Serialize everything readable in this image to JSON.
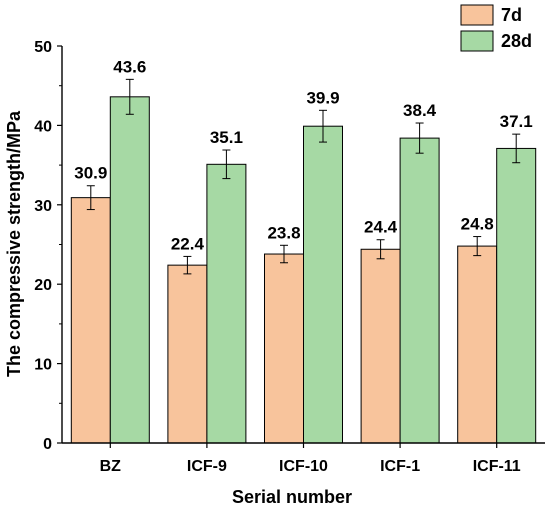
{
  "chart_data": {
    "type": "bar",
    "xlabel": "Serial number",
    "ylabel": "The compressive strength/MPa",
    "ylim": [
      0,
      50
    ],
    "yticks": [
      0,
      10,
      20,
      30,
      40,
      50
    ],
    "categories": [
      "BZ",
      "ICF-9",
      "ICF-10",
      "ICF-1",
      "ICF-11"
    ],
    "series": [
      {
        "name": "7d",
        "color": "#F8C49C",
        "values": [
          30.9,
          22.4,
          23.8,
          24.4,
          24.8
        ],
        "value_labels": [
          "30.9",
          "22.4",
          "23.8",
          "24.4",
          "24.8"
        ],
        "errors": [
          1.5,
          1.1,
          1.1,
          1.2,
          1.2
        ]
      },
      {
        "name": "28d",
        "color": "#A6D9A4",
        "values": [
          43.6,
          35.1,
          39.9,
          38.4,
          37.1
        ],
        "value_labels": [
          "43.6",
          "35.1",
          "39.9",
          "38.4",
          "37.1"
        ],
        "errors": [
          2.2,
          1.8,
          2.0,
          1.9,
          1.8
        ]
      }
    ],
    "legend": "top-right",
    "grid": false,
    "error_bars": true
  }
}
